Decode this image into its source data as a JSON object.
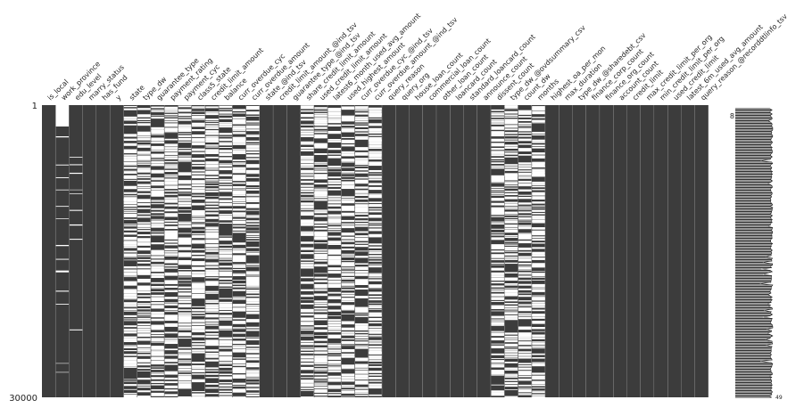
{
  "chart_data": {
    "type": "heatmap",
    "title": "",
    "rows": {
      "start_label": "1",
      "end_label": "30000",
      "start": 1,
      "end": 30000
    },
    "columns": [
      "is_local",
      "work_province",
      "edu_level",
      "marry_status",
      "has_fund",
      "y",
      "state",
      "type_dw",
      "guarantee_type",
      "payment_rating",
      "payment_cyc",
      "class5_state",
      "credit_limit_amount",
      "balance",
      "curr_overdue_cyc",
      "curr_overdue_amount",
      "state_@ind_tsv",
      "credit_limit_amount_@ind_tsv",
      "guarantee_type_@ind_tsv",
      "share_credit_limit_amount",
      "used_credit_limit_amount",
      "latest6_month_used_avg_amount",
      "used_highest_amount",
      "curr_overdue_cyc_@ind_tsv",
      "curr_overdue_amount_@ind_tsv",
      "query_reason",
      "query_org",
      "house_loan_count",
      "commercial_loan_count",
      "other_loan_count",
      "loancard_count",
      "standard_loancard_count",
      "announce_count",
      "dissent_count",
      "type_dw_@ovdsummary_csv",
      "count_dw",
      "months",
      "highest_oa_per_mon",
      "max_duration",
      "type_dw_@sharedebt_csv",
      "finance_corp_count",
      "finance_org_count",
      "account_count",
      "credit_limit",
      "max_credit_limit_per_org",
      "min_credit_limit_per_org",
      "used_credit_limit",
      "latest_6m_used_avg_amount",
      "query_reason_@recorddtlinfo_tsv"
    ],
    "missing_pattern": [
      "none",
      "sparse",
      "sparse",
      "none",
      "none",
      "none",
      "dense",
      "dense",
      "dense",
      "dense",
      "dense",
      "dense",
      "dense",
      "dense",
      "dense",
      "dense",
      "none",
      "none",
      "none",
      "dense",
      "dense",
      "dense",
      "dense",
      "dense",
      "dense",
      "none",
      "none",
      "none",
      "none",
      "none",
      "none",
      "none",
      "none",
      "dense",
      "dense",
      "dense",
      "dense",
      "none",
      "none",
      "none",
      "none",
      "none",
      "none",
      "none",
      "none",
      "none",
      "none",
      "none",
      "none"
    ],
    "sparkline": {
      "min_label": "8",
      "max_label": "49",
      "min": 8,
      "max": 49
    },
    "colors": {
      "present": "#3c3c3c",
      "missing": "#ffffff",
      "background": "#ffffff"
    }
  }
}
